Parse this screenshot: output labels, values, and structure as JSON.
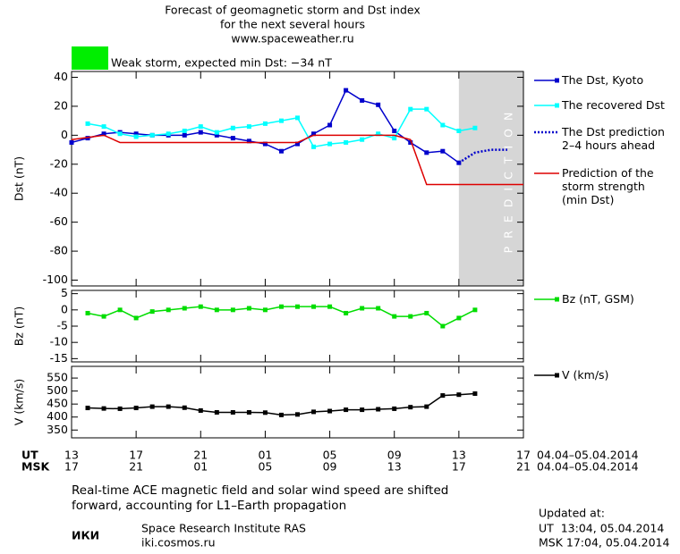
{
  "title": [
    "Forecast of geomagnetic storm and Dst index",
    "for the next several hours",
    "www.spaceweather.ru"
  ],
  "storm": {
    "label": "Weak storm, expected min Dst: −34 nT",
    "color": "#00ee00"
  },
  "chart_data": [
    {
      "type": "line",
      "ylabel": "Dst (nT)",
      "xlim": [
        0,
        28
      ],
      "xticks": [
        0,
        4,
        8,
        12,
        16,
        20,
        24,
        28
      ],
      "ylim": [
        -104,
        44
      ],
      "yticks": [
        40,
        20,
        0,
        -20,
        -40,
        -60,
        -80,
        -100
      ],
      "shade": {
        "x": [
          24,
          28
        ],
        "label": "PREDICTION",
        "color": "#d6d6d6"
      },
      "series": [
        {
          "name": "The Dst, Kyoto",
          "color": "#0000cc",
          "marker": "square",
          "linestyle": "solid",
          "x": [
            0,
            1,
            2,
            3,
            4,
            5,
            6,
            7,
            8,
            9,
            10,
            11,
            12,
            13,
            14,
            15,
            16,
            17,
            18,
            19,
            20,
            21,
            22,
            23,
            24
          ],
          "values": [
            -5,
            -2,
            1,
            2,
            1,
            0,
            0,
            0,
            2,
            0,
            -2,
            -4,
            -6,
            -11,
            -6,
            1,
            7,
            31,
            24,
            21,
            3,
            -5,
            -12,
            -11,
            -19
          ]
        },
        {
          "name": "The recovered Dst",
          "color": "#00ffff",
          "marker": "square",
          "linestyle": "solid",
          "x": [
            1,
            2,
            3,
            4,
            5,
            6,
            7,
            8,
            9,
            10,
            11,
            12,
            13,
            14,
            15,
            16,
            17,
            18,
            19,
            20,
            21,
            22,
            23,
            24,
            25
          ],
          "values": [
            8,
            6,
            1,
            -1,
            0,
            1,
            3,
            6,
            2,
            5,
            6,
            8,
            10,
            12,
            -8,
            -6,
            -5,
            -3,
            1,
            -2,
            18,
            18,
            7,
            3,
            5
          ]
        },
        {
          "name": "The Dst prediction\n2–4 hours ahead",
          "color": "#0000cc",
          "linestyle": "dotted",
          "x": [
            24,
            25,
            26,
            27
          ],
          "values": [
            -19,
            -12,
            -10,
            -10
          ]
        },
        {
          "name": "Prediction of the\nstorm strength\n(min Dst)",
          "color": "#dd0000",
          "linestyle": "solid",
          "x": [
            0,
            2,
            3,
            14,
            15,
            20,
            21,
            22,
            28
          ],
          "values": [
            -3,
            0,
            -5,
            -5,
            0,
            0,
            -3,
            -34,
            -34
          ]
        }
      ]
    },
    {
      "type": "line",
      "ylabel": "Bz (nT)",
      "xlim": [
        0,
        28
      ],
      "xticks": [
        0,
        4,
        8,
        12,
        16,
        20,
        24,
        28
      ],
      "ylim": [
        -16,
        6
      ],
      "yticks": [
        5,
        0,
        -5,
        -10,
        -15
      ],
      "series": [
        {
          "name": "Bz (nT, GSM)",
          "color": "#00dd00",
          "marker": "square",
          "linestyle": "solid",
          "x": [
            1,
            2,
            3,
            4,
            5,
            6,
            7,
            8,
            9,
            10,
            11,
            12,
            13,
            14,
            15,
            16,
            17,
            18,
            19,
            20,
            21,
            22,
            23,
            24,
            25
          ],
          "values": [
            -1,
            -2,
            0,
            -2.5,
            -0.5,
            0,
            0.5,
            1,
            0,
            0,
            0.5,
            0,
            1,
            1,
            1,
            1,
            -1,
            0.5,
            0.5,
            -2,
            -2,
            -1,
            -5,
            -2.5,
            0
          ]
        }
      ]
    },
    {
      "type": "line",
      "ylabel": "V (km/s)",
      "xlim": [
        0,
        28
      ],
      "xticks": [
        {
          "value": 0,
          "label": "13"
        },
        {
          "value": 4,
          "label": "17"
        },
        {
          "value": 8,
          "label": "21"
        },
        {
          "value": 12,
          "label": "01"
        },
        {
          "value": 16,
          "label": "05"
        },
        {
          "value": 20,
          "label": "09"
        },
        {
          "value": 24,
          "label": "13"
        },
        {
          "value": 28,
          "label": "17"
        }
      ],
      "x2ticks": [
        {
          "value": 0,
          "label": "17"
        },
        {
          "value": 4,
          "label": "21"
        },
        {
          "value": 8,
          "label": "01"
        },
        {
          "value": 12,
          "label": "05"
        },
        {
          "value": 16,
          "label": "09"
        },
        {
          "value": 20,
          "label": "13"
        },
        {
          "value": 24,
          "label": "17"
        },
        {
          "value": 28,
          "label": "21"
        }
      ],
      "ylim": [
        320,
        595
      ],
      "yticks": [
        550,
        500,
        450,
        400,
        350
      ],
      "series": [
        {
          "name": "V (km/s)",
          "color": "#000000",
          "marker": "square",
          "linestyle": "solid",
          "x": [
            1,
            2,
            3,
            4,
            5,
            6,
            7,
            8,
            9,
            10,
            11,
            12,
            13,
            14,
            15,
            16,
            17,
            18,
            19,
            20,
            21,
            22,
            23,
            24,
            25
          ],
          "values": [
            435,
            433,
            432,
            435,
            440,
            440,
            436,
            425,
            418,
            418,
            418,
            417,
            408,
            410,
            420,
            423,
            428,
            428,
            430,
            432,
            438,
            440,
            483,
            486,
            490
          ]
        }
      ]
    }
  ],
  "time_rows": [
    {
      "label": "UT",
      "range": "04.04–05.04.2014"
    },
    {
      "label": "MSK",
      "range": "04.04–05.04.2014"
    }
  ],
  "note": "Real-time ACE magnetic field and solar wind speed are shifted\nforward, accounting for L1–Earth propagation",
  "institute": {
    "logo": "ИКИ",
    "name": "Space Research Institute RAS",
    "url": "iki.cosmos.ru"
  },
  "updated": {
    "title": "Updated at:",
    "lines": [
      "UT  13:04, 05.04.2014",
      "MSK 17:04, 05.04.2014"
    ]
  }
}
